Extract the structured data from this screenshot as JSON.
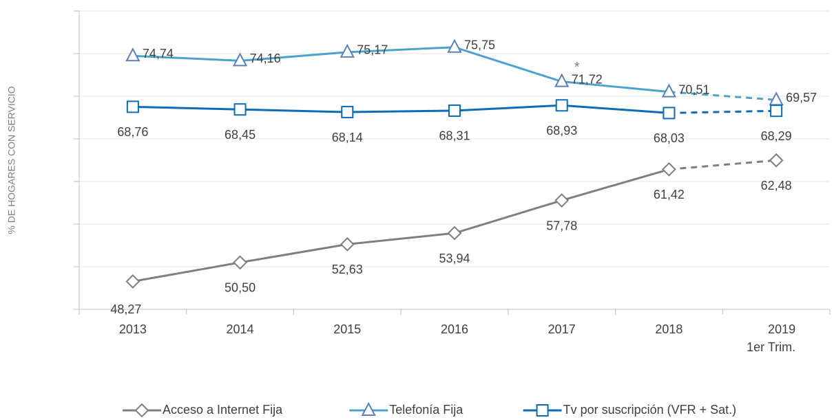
{
  "chart_data": {
    "type": "line",
    "y_axis_label": "% DE HOGARES CON SERVICIO",
    "categories": [
      "2013",
      "2014",
      "2015",
      "2016",
      "2017",
      "2018",
      "2019\n1er Trim."
    ],
    "ylim": [
      45,
      80
    ],
    "yticks": [
      45,
      50,
      55,
      60,
      65,
      70,
      75,
      80
    ],
    "grid": true,
    "series": [
      {
        "name": "Acceso a Internet Fija",
        "color": "#7f7f7f",
        "marker": "diamond",
        "label_position": "below",
        "dashed_last": true,
        "values": [
          48.27,
          50.5,
          52.63,
          53.94,
          57.78,
          61.42,
          62.48
        ],
        "value_labels": [
          "48,27",
          "50,50",
          "52,63",
          "53,94",
          "57,78",
          "61,42",
          "62,48"
        ]
      },
      {
        "name": "Telefonía Fija",
        "color": "#4ba3cc",
        "marker": "triangle",
        "label_position": "right",
        "dashed_last": true,
        "values": [
          74.74,
          74.16,
          75.17,
          75.75,
          71.72,
          70.51,
          69.57
        ],
        "value_labels": [
          "74,74",
          "74,16",
          "75,17",
          "75,75",
          "71,72",
          "70,51",
          "69,57"
        ]
      },
      {
        "name": "Tv por suscripción (VFR + Sat.)",
        "color": "#0b6db5",
        "marker": "square",
        "label_position": "below",
        "dashed_last": true,
        "values": [
          68.76,
          68.45,
          68.14,
          68.31,
          68.93,
          68.03,
          68.29
        ],
        "value_labels": [
          "68,76",
          "68,45",
          "68,14",
          "68,31",
          "68,93",
          "68,03",
          "68,29"
        ]
      }
    ],
    "annotations": [
      {
        "text": "*",
        "series": 1,
        "category": 4
      }
    ],
    "legend": "bottom"
  }
}
